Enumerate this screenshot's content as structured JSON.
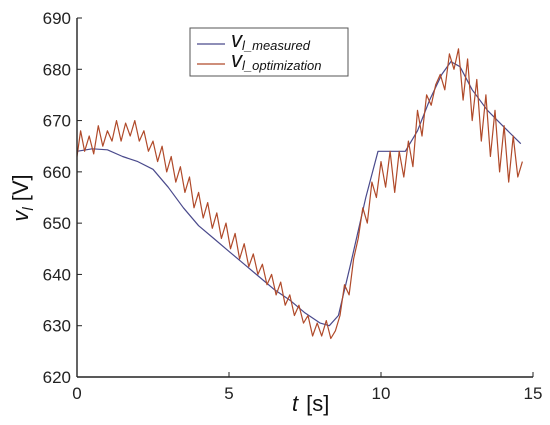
{
  "chart_data": {
    "type": "line",
    "title": "",
    "xlabel": {
      "main": "t",
      "unit": "[s]"
    },
    "ylabel": {
      "main": "v",
      "sub": "l",
      "unit": "[V]"
    },
    "xlim": [
      0,
      15
    ],
    "ylim": [
      620,
      690
    ],
    "xticks": [
      0,
      5,
      10,
      15
    ],
    "yticks": [
      620,
      630,
      640,
      650,
      660,
      670,
      680,
      690
    ],
    "grid": false,
    "legend_position": "top-center",
    "series": [
      {
        "name": {
          "main": "v",
          "sub": "l_measured"
        },
        "color": "#4a4a8c",
        "x": [
          0,
          0.5,
          1,
          1.5,
          2,
          2.5,
          3,
          3.5,
          4,
          4.5,
          5,
          5.5,
          6,
          6.5,
          7,
          7.5,
          8,
          8.3,
          8.6,
          9,
          9.5,
          9.9,
          10.3,
          10.8,
          11.2,
          11.6,
          12,
          12.3,
          12.6,
          13,
          13.5,
          14,
          14.6
        ],
        "y": [
          664,
          664.5,
          664.3,
          663,
          662,
          660.5,
          657,
          653,
          649.5,
          647,
          644.5,
          642,
          639.5,
          637,
          635,
          632.5,
          630.5,
          630,
          632,
          642,
          655,
          664,
          664,
          664,
          668,
          674,
          679,
          681.5,
          680.5,
          676,
          672,
          669,
          665.5
        ]
      },
      {
        "name": {
          "main": "v",
          "sub": "l_optimization"
        },
        "color": "#b04a2a",
        "x": [
          0,
          0.12,
          0.25,
          0.4,
          0.55,
          0.7,
          0.85,
          1.0,
          1.15,
          1.3,
          1.45,
          1.6,
          1.75,
          1.9,
          2.05,
          2.2,
          2.35,
          2.5,
          2.65,
          2.8,
          2.95,
          3.1,
          3.25,
          3.4,
          3.55,
          3.7,
          3.85,
          4.0,
          4.15,
          4.3,
          4.45,
          4.6,
          4.75,
          4.9,
          5.05,
          5.2,
          5.35,
          5.5,
          5.65,
          5.8,
          5.95,
          6.1,
          6.25,
          6.4,
          6.55,
          6.7,
          6.85,
          7.0,
          7.15,
          7.3,
          7.45,
          7.6,
          7.75,
          7.9,
          8.05,
          8.2,
          8.35,
          8.5,
          8.65,
          8.8,
          8.95,
          9.1,
          9.25,
          9.4,
          9.55,
          9.7,
          9.85,
          10.0,
          10.15,
          10.3,
          10.45,
          10.6,
          10.75,
          10.9,
          11.05,
          11.2,
          11.35,
          11.5,
          11.65,
          11.8,
          11.95,
          12.1,
          12.25,
          12.4,
          12.55,
          12.7,
          12.85,
          13.0,
          13.15,
          13.3,
          13.45,
          13.6,
          13.75,
          13.9,
          14.05,
          14.2,
          14.35,
          14.5,
          14.65
        ],
        "y": [
          663,
          668,
          664,
          667,
          663.5,
          669,
          665,
          668,
          666,
          670,
          666,
          669.5,
          667,
          670,
          666,
          668,
          664,
          666,
          662,
          665,
          660,
          663,
          658,
          661,
          656,
          659,
          653,
          656,
          651,
          654,
          649,
          652,
          647,
          650,
          645,
          648,
          643,
          646,
          641.5,
          644,
          640,
          642,
          638,
          640,
          636,
          638.5,
          634,
          636,
          632,
          634,
          630.5,
          632,
          628,
          630.5,
          628,
          631,
          627.5,
          629,
          632,
          638,
          636,
          643,
          647,
          653,
          650,
          658,
          655,
          662,
          657,
          664,
          656,
          664,
          659,
          666,
          661,
          672,
          667,
          675,
          673,
          677,
          679,
          676,
          683,
          680,
          684,
          674,
          682,
          670,
          678,
          666,
          675,
          663,
          672,
          660,
          669,
          658,
          667,
          659,
          662
        ]
      }
    ]
  }
}
